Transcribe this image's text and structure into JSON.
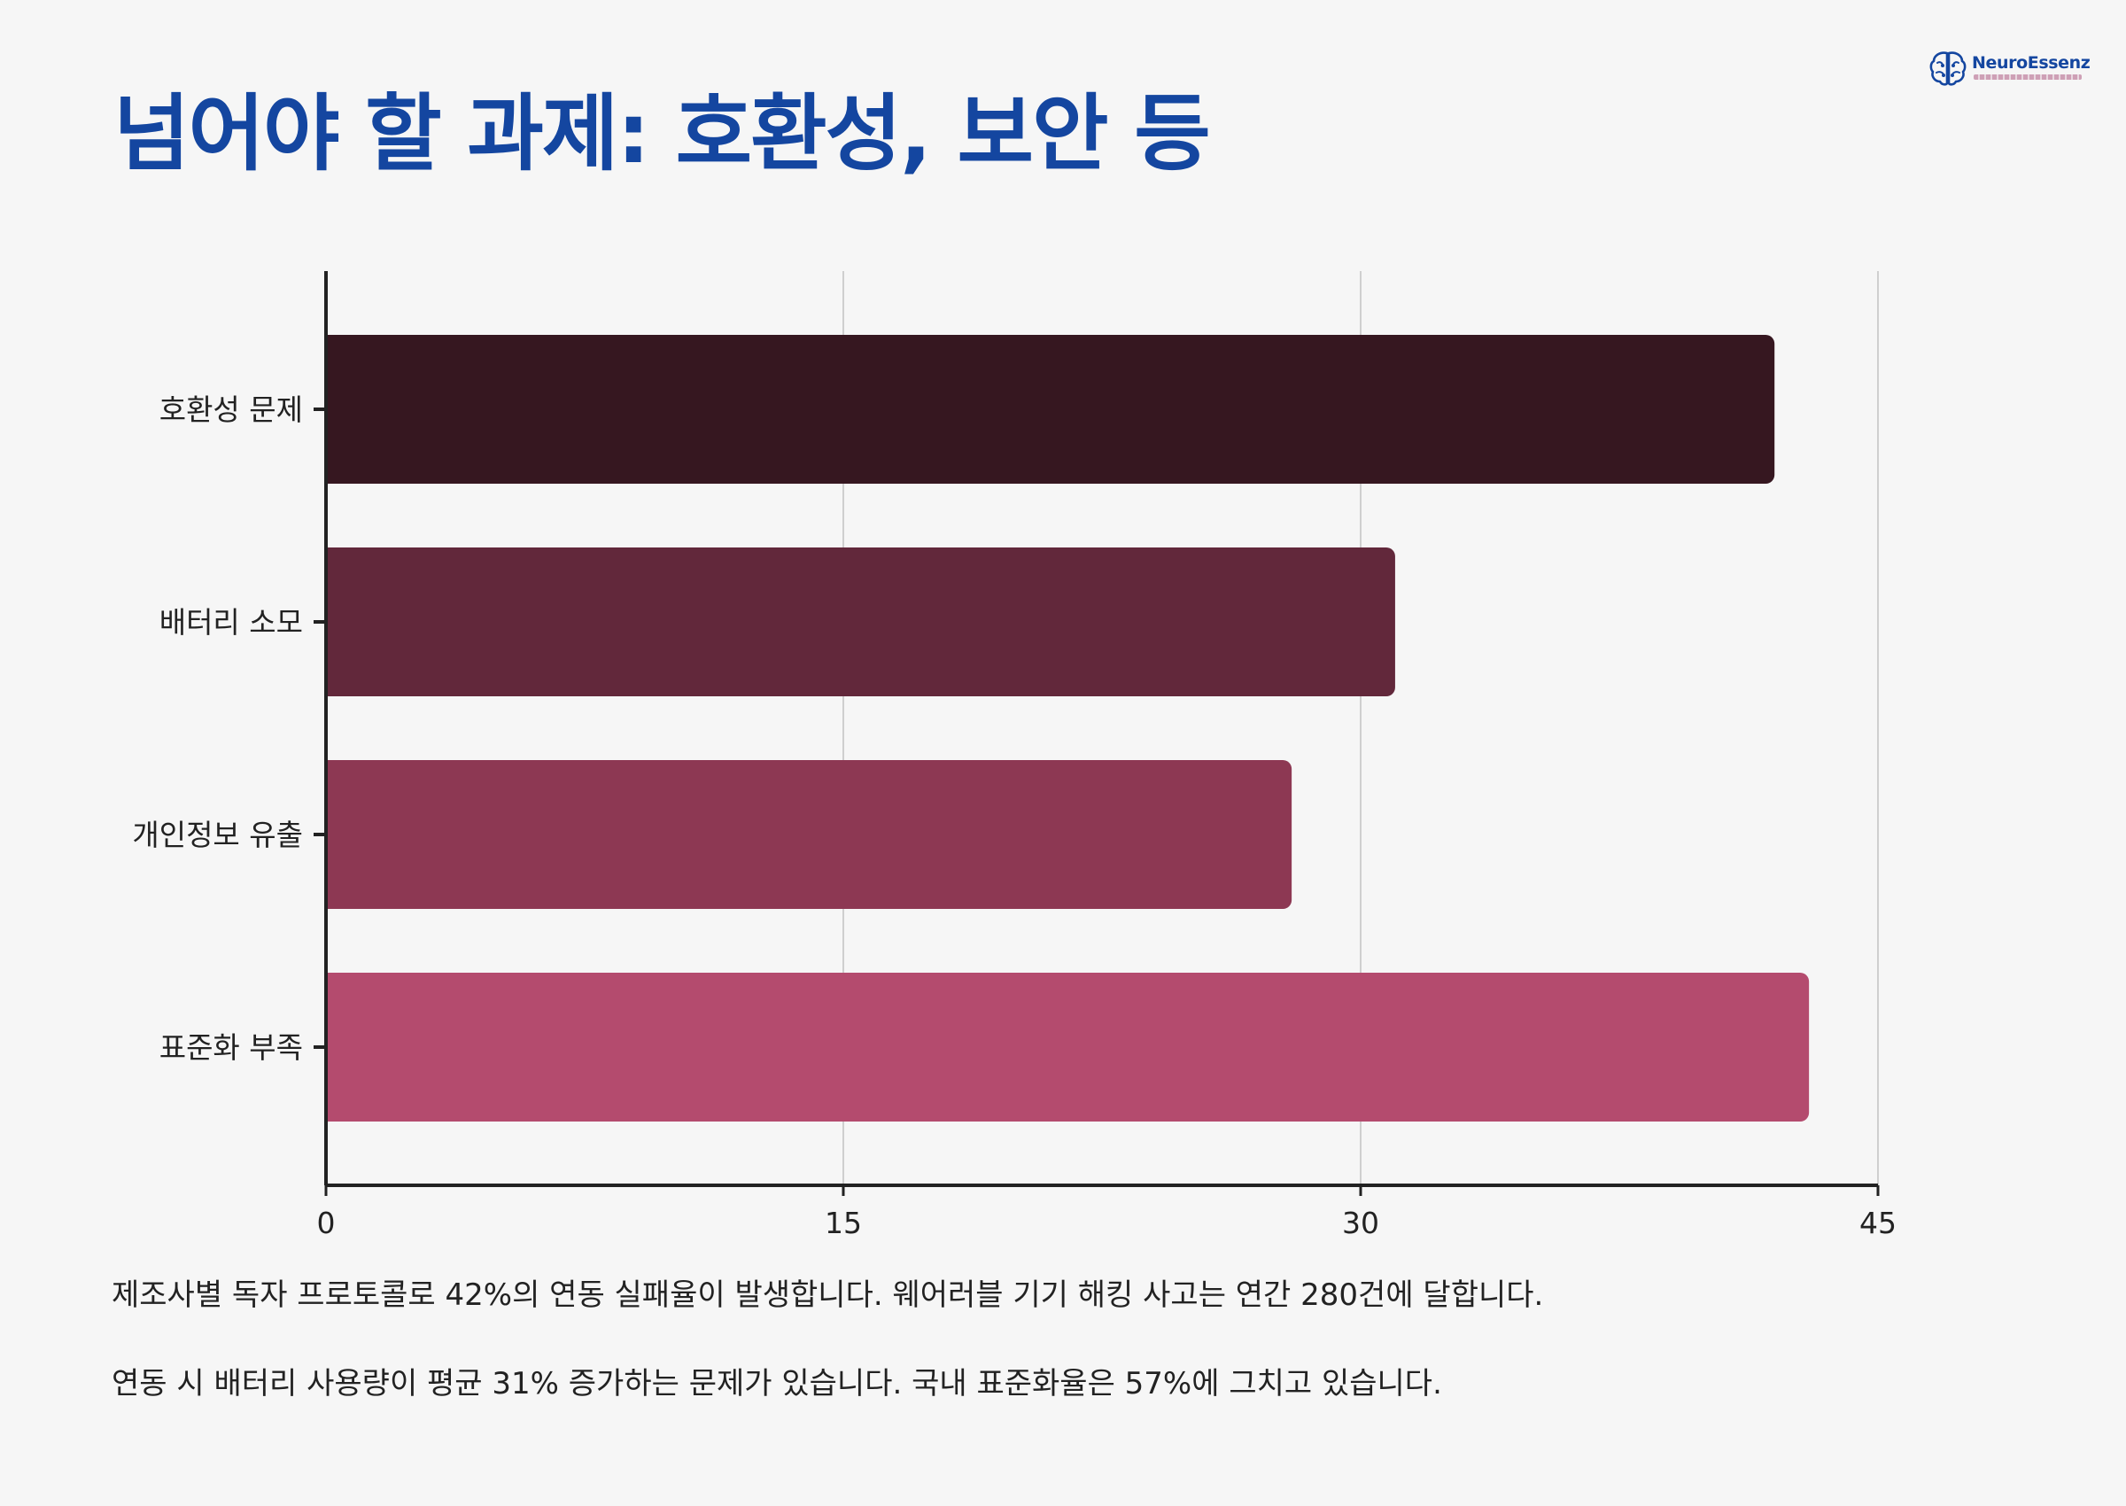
{
  "header": {
    "title": "넘어야 할 과제: 호환성, 보안 등",
    "logo_name": "NeuroEssenz"
  },
  "chart_data": {
    "type": "bar",
    "orientation": "horizontal",
    "categories": [
      "호환성 문제",
      "배터리 소모",
      "개인정보 유출",
      "표준화 부족"
    ],
    "values": [
      42,
      31,
      28,
      43
    ],
    "colors": [
      "#361720",
      "#62283b",
      "#8d3853",
      "#b44b6e"
    ],
    "xlim": [
      0,
      45
    ],
    "xticks": [
      "0",
      "15",
      "30",
      "45"
    ],
    "grid": "vertical",
    "title": "",
    "xlabel": "",
    "ylabel": ""
  },
  "notes": [
    "제조사별 독자 프로토콜로 42%의 연동 실패율이 발생합니다. 웨어러블 기기 해킹 사고는 연간 280건에 달합니다.",
    "연동 시 배터리 사용량이 평균 31% 증가하는 문제가 있습니다. 국내 표준화율은 57%에 그치고 있습니다."
  ],
  "colors": {
    "title": "#1446a0",
    "background": "#f6f6f6",
    "grid": "#cfcfcf",
    "axis": "#222222"
  }
}
